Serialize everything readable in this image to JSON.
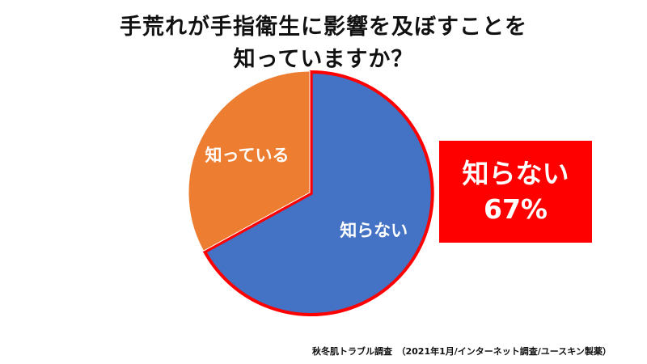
{
  "chart_data": {
    "type": "pie",
    "title_lines": [
      "手荒れが手指衛生に影響を及ぼすことを",
      "知っていますか？"
    ],
    "slices": [
      {
        "label": "知らない",
        "value": 67,
        "color": "#4472C4"
      },
      {
        "label": "知っている",
        "value": 33,
        "color": "#ED7D31"
      }
    ],
    "highlight": {
      "label": "知らない",
      "value_text": "67%",
      "color": "#FF0000"
    }
  },
  "footnote": "秋冬肌トラブル調査　（2021年1月/インターネット調査/ユースキン製薬）"
}
